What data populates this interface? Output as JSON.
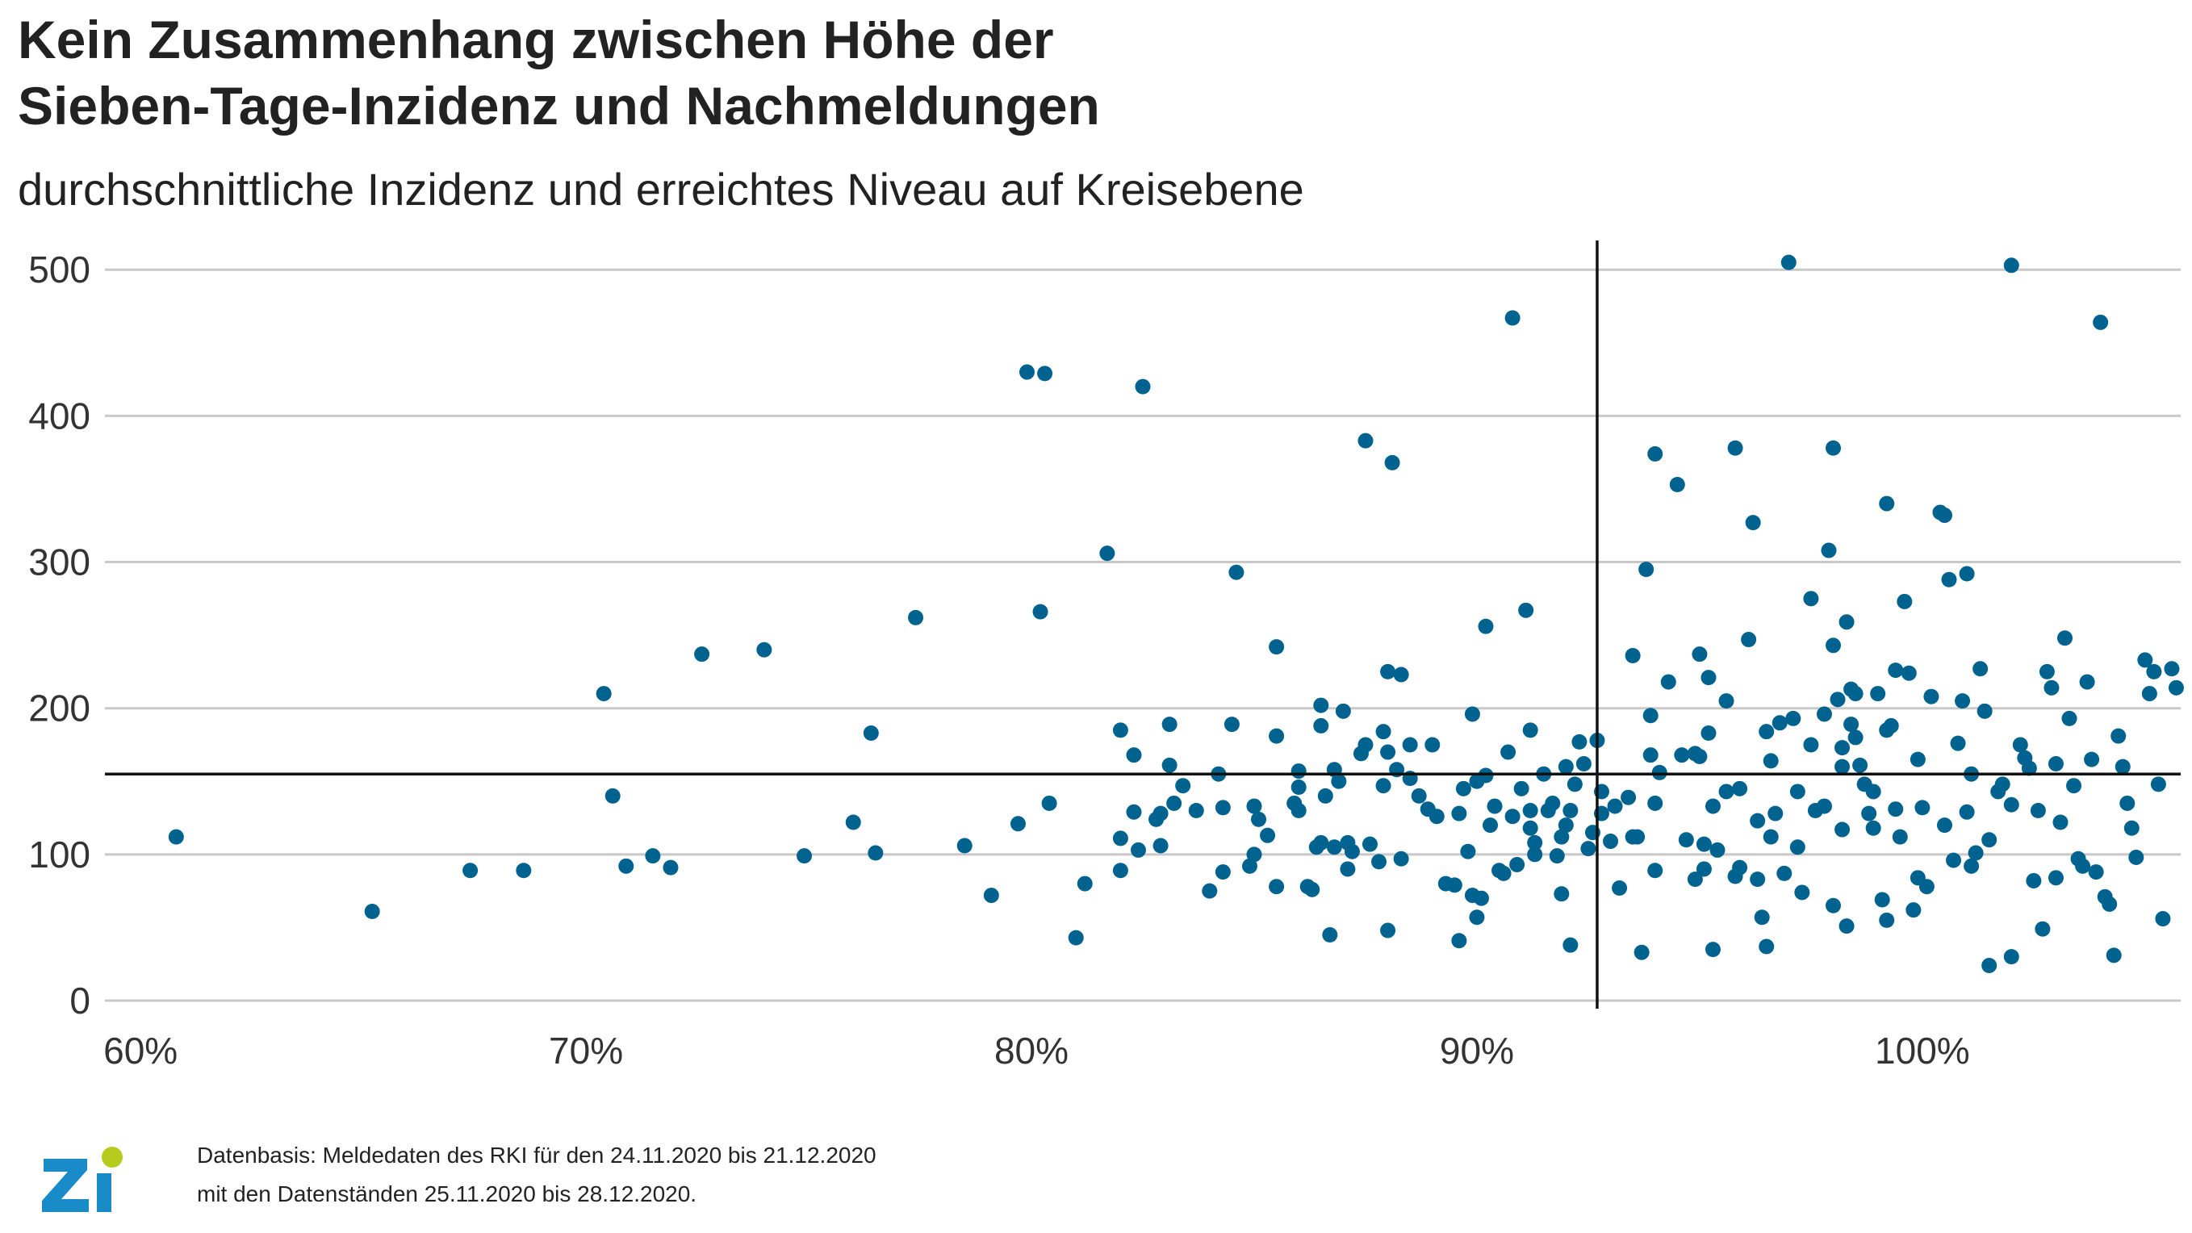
{
  "title_line1": "Kein Zusammenhang zwischen Höhe der",
  "title_line2": "Sieben-Tage-Inzidenz und Nachmeldungen",
  "subtitle": "durchschnittliche Inzidenz und erreichtes Niveau auf Kreisebene",
  "footer_line1": "Datenbasis: Meldedaten des RKI für den 24.11.2020 bis 21.12.2020",
  "footer_line2": "mit den Datenständen 25.11.2020 bis 28.12.2020.",
  "logo": {
    "text": "zi",
    "colors": {
      "letters": "#1a8bc9",
      "dot": "#b6cc1c"
    }
  },
  "chart_data": {
    "type": "scatter",
    "title": "Kein Zusammenhang zwischen Höhe der Sieben-Tage-Inzidenz und Nachmeldungen",
    "subtitle": "durchschnittliche Inzidenz und erreichtes Niveau auf Kreisebene",
    "xlabel": "",
    "ylabel": "",
    "xlim": [
      59.2,
      105.8
    ],
    "ylim": [
      0,
      520
    ],
    "x_ticks": [
      60,
      70,
      80,
      90,
      100
    ],
    "x_tick_labels": [
      "60%",
      "70%",
      "80%",
      "90%",
      "100%"
    ],
    "y_ticks": [
      0,
      100,
      200,
      300,
      400,
      500
    ],
    "y_tick_labels": [
      "0",
      "100",
      "200",
      "300",
      "400",
      "500"
    ],
    "grid": "horizontal",
    "reference_lines": {
      "x": 92.7,
      "y": 155
    },
    "colors": {
      "points": "#00628f",
      "grid": "#c8c8c8",
      "reference": "#111111"
    },
    "points": [
      [
        60.8,
        112
      ],
      [
        65.2,
        61
      ],
      [
        67.4,
        89
      ],
      [
        68.6,
        89
      ],
      [
        70.4,
        210
      ],
      [
        70.6,
        140
      ],
      [
        70.9,
        92
      ],
      [
        71.5,
        99
      ],
      [
        71.9,
        91
      ],
      [
        72.6,
        237
      ],
      [
        74.0,
        240
      ],
      [
        74.9,
        99
      ],
      [
        76.0,
        122
      ],
      [
        76.4,
        183
      ],
      [
        76.5,
        101
      ],
      [
        77.4,
        262
      ],
      [
        78.5,
        106
      ],
      [
        79.1,
        72
      ],
      [
        79.7,
        121
      ],
      [
        79.9,
        430
      ],
      [
        80.2,
        266
      ],
      [
        80.3,
        429
      ],
      [
        80.4,
        135
      ],
      [
        81.0,
        43
      ],
      [
        81.2,
        80
      ],
      [
        81.7,
        306
      ],
      [
        82.0,
        185
      ],
      [
        82.0,
        111
      ],
      [
        82.0,
        89
      ],
      [
        82.3,
        168
      ],
      [
        82.3,
        129
      ],
      [
        82.4,
        103
      ],
      [
        82.5,
        420
      ],
      [
        82.8,
        124
      ],
      [
        82.9,
        106
      ],
      [
        82.9,
        128
      ],
      [
        83.1,
        189
      ],
      [
        83.1,
        161
      ],
      [
        83.2,
        135
      ],
      [
        83.4,
        147
      ],
      [
        83.7,
        130
      ],
      [
        84.0,
        75
      ],
      [
        84.2,
        155
      ],
      [
        84.3,
        88
      ],
      [
        84.3,
        132
      ],
      [
        84.5,
        189
      ],
      [
        84.6,
        293
      ],
      [
        84.9,
        92
      ],
      [
        85.0,
        100
      ],
      [
        85.0,
        133
      ],
      [
        85.1,
        124
      ],
      [
        85.3,
        113
      ],
      [
        85.5,
        242
      ],
      [
        85.5,
        181
      ],
      [
        85.5,
        78
      ],
      [
        85.9,
        135
      ],
      [
        86.0,
        130
      ],
      [
        86.0,
        157
      ],
      [
        86.0,
        146
      ],
      [
        86.2,
        78
      ],
      [
        86.3,
        76
      ],
      [
        86.4,
        105
      ],
      [
        86.5,
        202
      ],
      [
        86.5,
        188
      ],
      [
        86.5,
        108
      ],
      [
        86.6,
        140
      ],
      [
        86.7,
        45
      ],
      [
        86.8,
        158
      ],
      [
        86.8,
        105
      ],
      [
        86.9,
        150
      ],
      [
        87.0,
        198
      ],
      [
        87.1,
        90
      ],
      [
        87.1,
        108
      ],
      [
        87.2,
        102
      ],
      [
        87.4,
        169
      ],
      [
        87.5,
        383
      ],
      [
        87.5,
        175
      ],
      [
        87.6,
        107
      ],
      [
        87.8,
        95
      ],
      [
        87.9,
        147
      ],
      [
        87.9,
        184
      ],
      [
        88.0,
        225
      ],
      [
        88.0,
        170
      ],
      [
        88.0,
        48
      ],
      [
        88.1,
        368
      ],
      [
        88.2,
        158
      ],
      [
        88.3,
        223
      ],
      [
        88.3,
        97
      ],
      [
        88.5,
        152
      ],
      [
        88.5,
        175
      ],
      [
        88.7,
        140
      ],
      [
        88.9,
        131
      ],
      [
        89.0,
        175
      ],
      [
        89.1,
        126
      ],
      [
        89.3,
        80
      ],
      [
        89.5,
        79
      ],
      [
        89.6,
        128
      ],
      [
        89.6,
        41
      ],
      [
        89.7,
        145
      ],
      [
        89.8,
        102
      ],
      [
        89.9,
        72
      ],
      [
        89.9,
        196
      ],
      [
        90.0,
        57
      ],
      [
        90.0,
        150
      ],
      [
        90.1,
        70
      ],
      [
        90.2,
        256
      ],
      [
        90.2,
        154
      ],
      [
        90.3,
        120
      ],
      [
        90.4,
        133
      ],
      [
        90.5,
        89
      ],
      [
        90.6,
        87
      ],
      [
        90.7,
        170
      ],
      [
        90.8,
        467
      ],
      [
        90.8,
        126
      ],
      [
        90.9,
        93
      ],
      [
        91.0,
        145
      ],
      [
        91.1,
        267
      ],
      [
        91.2,
        185
      ],
      [
        91.2,
        130
      ],
      [
        91.2,
        118
      ],
      [
        91.3,
        100
      ],
      [
        91.3,
        108
      ],
      [
        91.5,
        155
      ],
      [
        91.6,
        130
      ],
      [
        91.7,
        135
      ],
      [
        91.8,
        99
      ],
      [
        91.9,
        73
      ],
      [
        91.9,
        112
      ],
      [
        92.0,
        160
      ],
      [
        92.0,
        120
      ],
      [
        92.1,
        130
      ],
      [
        92.1,
        38
      ],
      [
        92.2,
        148
      ],
      [
        92.3,
        177
      ],
      [
        92.4,
        162
      ],
      [
        92.5,
        104
      ],
      [
        92.6,
        115
      ],
      [
        92.7,
        178
      ],
      [
        92.8,
        143
      ],
      [
        92.8,
        128
      ],
      [
        93.0,
        109
      ],
      [
        93.1,
        133
      ],
      [
        93.2,
        77
      ],
      [
        93.4,
        139
      ],
      [
        93.5,
        236
      ],
      [
        93.5,
        112
      ],
      [
        93.6,
        112
      ],
      [
        93.7,
        33
      ],
      [
        93.8,
        295
      ],
      [
        93.9,
        195
      ],
      [
        93.9,
        168
      ],
      [
        94.0,
        135
      ],
      [
        94.0,
        374
      ],
      [
        94.0,
        89
      ],
      [
        94.1,
        156
      ],
      [
        94.3,
        218
      ],
      [
        94.5,
        353
      ],
      [
        94.6,
        168
      ],
      [
        94.7,
        110
      ],
      [
        94.9,
        169
      ],
      [
        94.9,
        83
      ],
      [
        95.0,
        237
      ],
      [
        95.0,
        167
      ],
      [
        95.1,
        90
      ],
      [
        95.1,
        107
      ],
      [
        95.2,
        183
      ],
      [
        95.2,
        221
      ],
      [
        95.3,
        133
      ],
      [
        95.3,
        35
      ],
      [
        95.4,
        103
      ],
      [
        95.6,
        205
      ],
      [
        95.6,
        143
      ],
      [
        95.8,
        378
      ],
      [
        95.8,
        85
      ],
      [
        95.9,
        91
      ],
      [
        95.9,
        145
      ],
      [
        96.1,
        247
      ],
      [
        96.2,
        327
      ],
      [
        96.3,
        123
      ],
      [
        96.3,
        83
      ],
      [
        96.4,
        57
      ],
      [
        96.5,
        184
      ],
      [
        96.5,
        37
      ],
      [
        96.6,
        164
      ],
      [
        96.6,
        112
      ],
      [
        96.7,
        128
      ],
      [
        96.8,
        190
      ],
      [
        96.9,
        87
      ],
      [
        97.0,
        505
      ],
      [
        97.1,
        193
      ],
      [
        97.2,
        143
      ],
      [
        97.2,
        105
      ],
      [
        97.3,
        74
      ],
      [
        97.5,
        275
      ],
      [
        97.5,
        175
      ],
      [
        97.6,
        130
      ],
      [
        97.8,
        133
      ],
      [
        97.8,
        196
      ],
      [
        97.9,
        308
      ],
      [
        98.0,
        378
      ],
      [
        98.0,
        243
      ],
      [
        98.0,
        65
      ],
      [
        98.1,
        206
      ],
      [
        98.2,
        173
      ],
      [
        98.2,
        160
      ],
      [
        98.2,
        117
      ],
      [
        98.3,
        259
      ],
      [
        98.3,
        51
      ],
      [
        98.4,
        213
      ],
      [
        98.4,
        189
      ],
      [
        98.5,
        180
      ],
      [
        98.5,
        210
      ],
      [
        98.6,
        161
      ],
      [
        98.7,
        148
      ],
      [
        98.8,
        128
      ],
      [
        98.9,
        143
      ],
      [
        98.9,
        118
      ],
      [
        99.0,
        210
      ],
      [
        99.1,
        69
      ],
      [
        99.2,
        340
      ],
      [
        99.2,
        185
      ],
      [
        99.2,
        55
      ],
      [
        99.3,
        188
      ],
      [
        99.4,
        226
      ],
      [
        99.4,
        131
      ],
      [
        99.5,
        112
      ],
      [
        99.6,
        273
      ],
      [
        99.7,
        224
      ],
      [
        99.8,
        62
      ],
      [
        99.9,
        165
      ],
      [
        99.9,
        84
      ],
      [
        100.0,
        132
      ],
      [
        100.1,
        78
      ],
      [
        100.2,
        208
      ],
      [
        100.4,
        334
      ],
      [
        100.5,
        332
      ],
      [
        100.5,
        120
      ],
      [
        100.6,
        288
      ],
      [
        100.7,
        96
      ],
      [
        100.8,
        176
      ],
      [
        100.9,
        205
      ],
      [
        101.0,
        292
      ],
      [
        101.0,
        129
      ],
      [
        101.1,
        155
      ],
      [
        101.1,
        92
      ],
      [
        101.2,
        101
      ],
      [
        101.3,
        227
      ],
      [
        101.4,
        198
      ],
      [
        101.5,
        110
      ],
      [
        101.5,
        24
      ],
      [
        101.7,
        143
      ],
      [
        101.8,
        148
      ],
      [
        102.0,
        503
      ],
      [
        102.0,
        134
      ],
      [
        102.0,
        30
      ],
      [
        102.2,
        175
      ],
      [
        102.3,
        166
      ],
      [
        102.4,
        159
      ],
      [
        102.5,
        82
      ],
      [
        102.6,
        130
      ],
      [
        102.7,
        49
      ],
      [
        102.8,
        225
      ],
      [
        102.9,
        214
      ],
      [
        103.0,
        162
      ],
      [
        103.0,
        84
      ],
      [
        103.1,
        122
      ],
      [
        103.2,
        248
      ],
      [
        103.3,
        193
      ],
      [
        103.4,
        147
      ],
      [
        103.5,
        97
      ],
      [
        103.6,
        92
      ],
      [
        103.7,
        218
      ],
      [
        103.8,
        165
      ],
      [
        103.9,
        88
      ],
      [
        104.0,
        464
      ],
      [
        104.1,
        71
      ],
      [
        104.2,
        66
      ],
      [
        104.3,
        31
      ],
      [
        104.4,
        181
      ],
      [
        104.5,
        160
      ],
      [
        104.6,
        135
      ],
      [
        104.7,
        118
      ],
      [
        104.8,
        98
      ],
      [
        105.0,
        233
      ],
      [
        105.1,
        210
      ],
      [
        105.2,
        225
      ],
      [
        105.3,
        148
      ],
      [
        105.4,
        56
      ],
      [
        105.6,
        227
      ],
      [
        105.7,
        214
      ]
    ]
  }
}
